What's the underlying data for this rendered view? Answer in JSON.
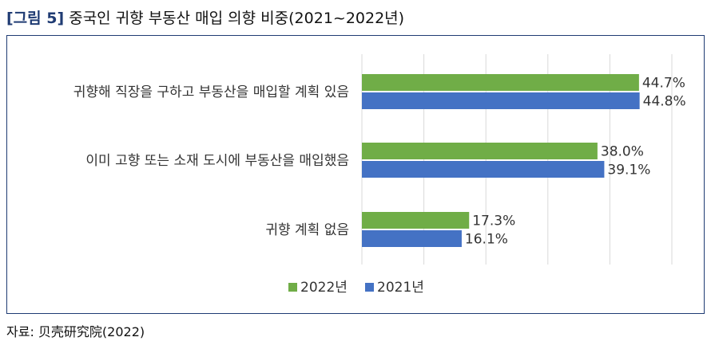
{
  "figure": {
    "label": "[그림 5]",
    "title": "중국인 귀향 부동산 매입 의향 비중(2021~2022년)"
  },
  "source": "자료: 贝壳研究院(2022)",
  "colors": {
    "s2022": "#70ad47",
    "s2021": "#4472c4",
    "grid": "#d9d9d9",
    "frame": "#1f3b73"
  },
  "chart_data": {
    "type": "bar",
    "orientation": "horizontal",
    "categories": [
      "귀향해 직장을 구하고 부동산을 매입할 계획 있음",
      "이미 고향 또는 소재 도시에 부동산을 매입했음",
      "귀향 계획 없음"
    ],
    "series": [
      {
        "name": "2022년",
        "values": [
          44.7,
          38.0,
          17.3
        ],
        "labels": [
          "44.7%",
          "38.0%",
          "17.3%"
        ]
      },
      {
        "name": "2021년",
        "values": [
          44.8,
          39.1,
          16.1
        ],
        "labels": [
          "44.8%",
          "39.1%",
          "16.1%"
        ]
      }
    ],
    "xlim": [
      0,
      50
    ],
    "grid": true,
    "legend": "bottom-center"
  }
}
